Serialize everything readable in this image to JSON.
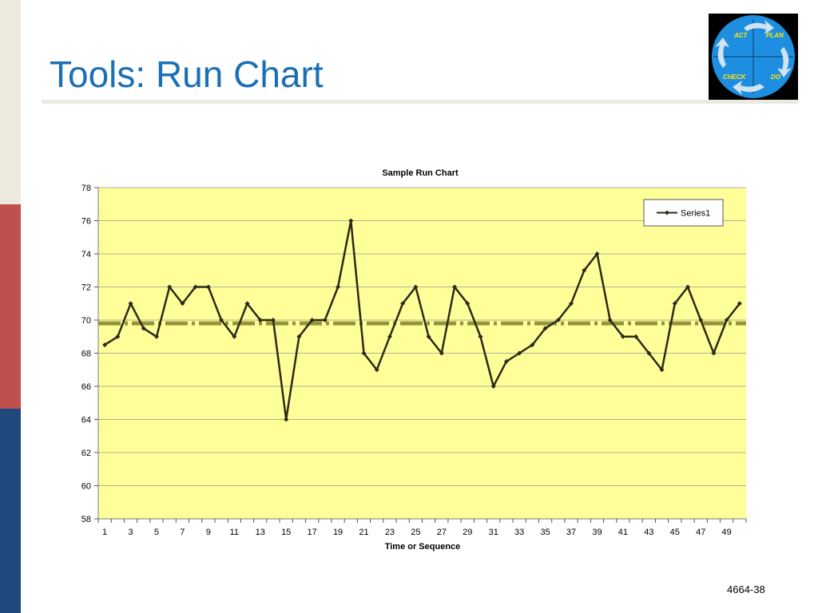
{
  "slide": {
    "title": "Tools: Run Chart",
    "slide_number": "4664-38"
  },
  "logo": {
    "labels": [
      "ACT",
      "PLAN",
      "CHECK",
      "DO"
    ],
    "colors": {
      "background": "#000000",
      "circle": "#1e8fe0",
      "arrow": "#cfe3f0",
      "text": "#ffe600"
    }
  },
  "colors": {
    "title": "#1a6fb5",
    "plot_background": "#ffff99",
    "series_line": "#2e2a18",
    "mean_line": "#8a8a2e",
    "grid": "#9a9a9a"
  },
  "chart_data": {
    "type": "line",
    "title": "Sample Run Chart",
    "xlabel": "Time or Sequence",
    "ylabel": "",
    "x": [
      1,
      2,
      3,
      4,
      5,
      6,
      7,
      8,
      9,
      10,
      11,
      12,
      13,
      14,
      15,
      16,
      17,
      18,
      19,
      20,
      21,
      22,
      23,
      24,
      25,
      26,
      27,
      28,
      29,
      30,
      31,
      32,
      33,
      34,
      35,
      36,
      37,
      38,
      39,
      40,
      41,
      42,
      43,
      44,
      45,
      46,
      47,
      48,
      49,
      50
    ],
    "series": [
      {
        "name": "Series1",
        "values": [
          68.5,
          69,
          71,
          69.5,
          69,
          72,
          71,
          72,
          72,
          70,
          69,
          71,
          70,
          70,
          64,
          69,
          70,
          70,
          72,
          76,
          68,
          67,
          69,
          71,
          72,
          69,
          68,
          72,
          71,
          69,
          66,
          67.5,
          68,
          68.5,
          69.5,
          70,
          71,
          73,
          74,
          70,
          69,
          69,
          68,
          67,
          71,
          72,
          70,
          68,
          70,
          71
        ]
      }
    ],
    "mean_line": 69.8,
    "ylim": [
      58,
      78
    ],
    "y_ticks": [
      58,
      60,
      62,
      64,
      66,
      68,
      70,
      72,
      74,
      76,
      78
    ],
    "x_tick_labels": [
      "1",
      "3",
      "5",
      "7",
      "9",
      "11",
      "13",
      "15",
      "17",
      "19",
      "21",
      "23",
      "25",
      "27",
      "29",
      "31",
      "33",
      "35",
      "37",
      "39",
      "41",
      "43",
      "45",
      "47",
      "49"
    ],
    "grid": true,
    "legend_position": "top-right"
  }
}
